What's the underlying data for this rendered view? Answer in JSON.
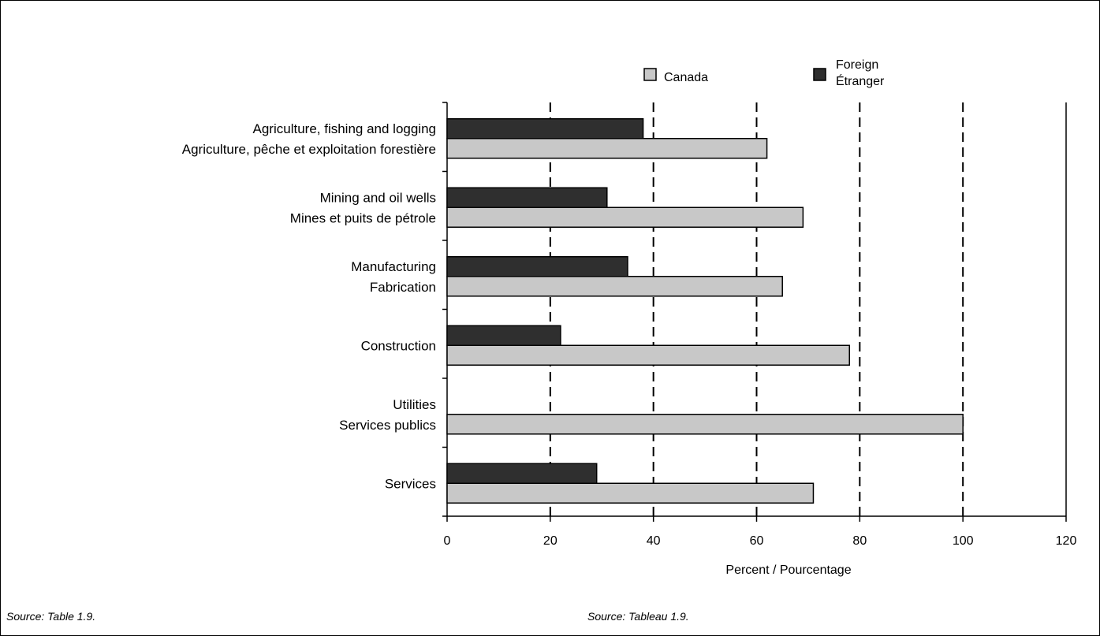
{
  "chart_data": {
    "type": "bar",
    "orientation": "horizontal",
    "categories": [
      [
        "Agriculture, fishing and logging",
        "Agriculture, pêche et exploitation forestière"
      ],
      [
        "Mining and oil wells",
        "Mines et puits de pétrole"
      ],
      [
        "Manufacturing",
        "Fabrication"
      ],
      [
        "Construction"
      ],
      [
        "Utilities",
        "Services publics"
      ],
      [
        "Services"
      ]
    ],
    "series": [
      {
        "name": "Foreign / Étranger",
        "legend_lines": [
          "Foreign",
          "Étranger"
        ],
        "color": "#2f2f2f",
        "values": [
          38,
          31,
          35,
          22,
          0,
          29
        ]
      },
      {
        "name": "Canada",
        "legend_lines": [
          "Canada"
        ],
        "color": "#c8c8c8",
        "values": [
          62,
          69,
          65,
          78,
          100,
          71
        ]
      }
    ],
    "xlim": [
      0,
      120
    ],
    "xticks": [
      0,
      20,
      40,
      60,
      80,
      100,
      120
    ],
    "xlabel": "Percent / Pourcentage",
    "grid": "vertical dashed",
    "legend": "top",
    "source_en": "Source:  Table 1.9.",
    "source_fr": "Source:  Tableau 1.9."
  }
}
